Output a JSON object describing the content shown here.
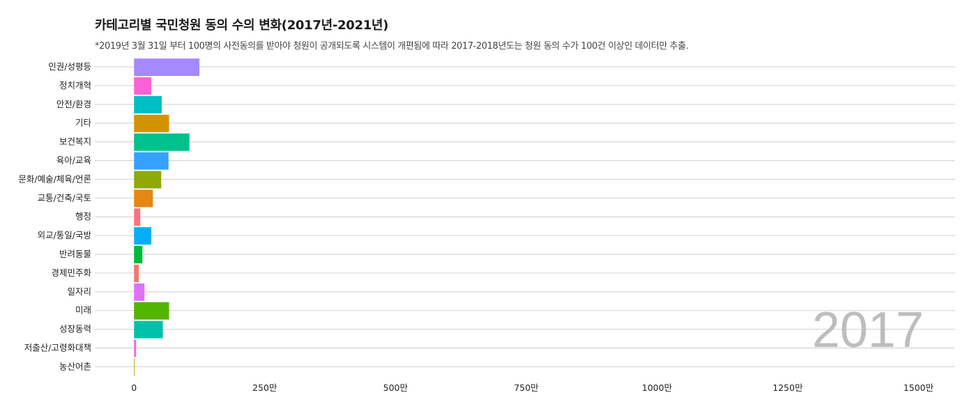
{
  "chart_data": {
    "type": "bar",
    "orientation": "horizontal",
    "title": "카테고리별 국민청원 동의 수의 변화(2017년-2021년)",
    "subtitle": "*2019년 3월 31일 부터 100명의 사전동의를 받아야 청원이 공개되도록 시스템이 개편됨에 따라 2017-2018년도는 청원 동의 수가 100건 이상인 데이터만 추출.",
    "year": "2017",
    "categories": [
      "인권/성평등",
      "정치개혁",
      "안전/환경",
      "기타",
      "보건복지",
      "육아/교육",
      "문화/예술/체육/언론",
      "교통/건축/국토",
      "행정",
      "외교/통일/국방",
      "반려동물",
      "경제민주화",
      "일자리",
      "미래",
      "성장동력",
      "저출산/고령화대책",
      "농산어촌"
    ],
    "values": [
      1250000,
      330000,
      530000,
      670000,
      1060000,
      660000,
      520000,
      360000,
      120000,
      330000,
      160000,
      90000,
      200000,
      670000,
      550000,
      40000,
      10000
    ],
    "colors": [
      "#a58aff",
      "#fb61d7",
      "#00bfc4",
      "#d39200",
      "#00c08b",
      "#35a2ff",
      "#8fa909",
      "#e68613",
      "#fc717f",
      "#00b0f6",
      "#00ba38",
      "#f8766d",
      "#df70f8",
      "#53b400",
      "#00c1a9",
      "#f066e9",
      "#b79f00"
    ],
    "xlim": [
      -750000,
      15700000
    ],
    "xticks": [
      0,
      2500000,
      5000000,
      7500000,
      10000000,
      12500000,
      15000000
    ],
    "xtick_labels": [
      "0",
      "250만",
      "500만",
      "750만",
      "1000만",
      "1250만",
      "1500만"
    ],
    "xlabel": "",
    "ylabel": "",
    "grid": "horizontal",
    "legend": "none"
  }
}
